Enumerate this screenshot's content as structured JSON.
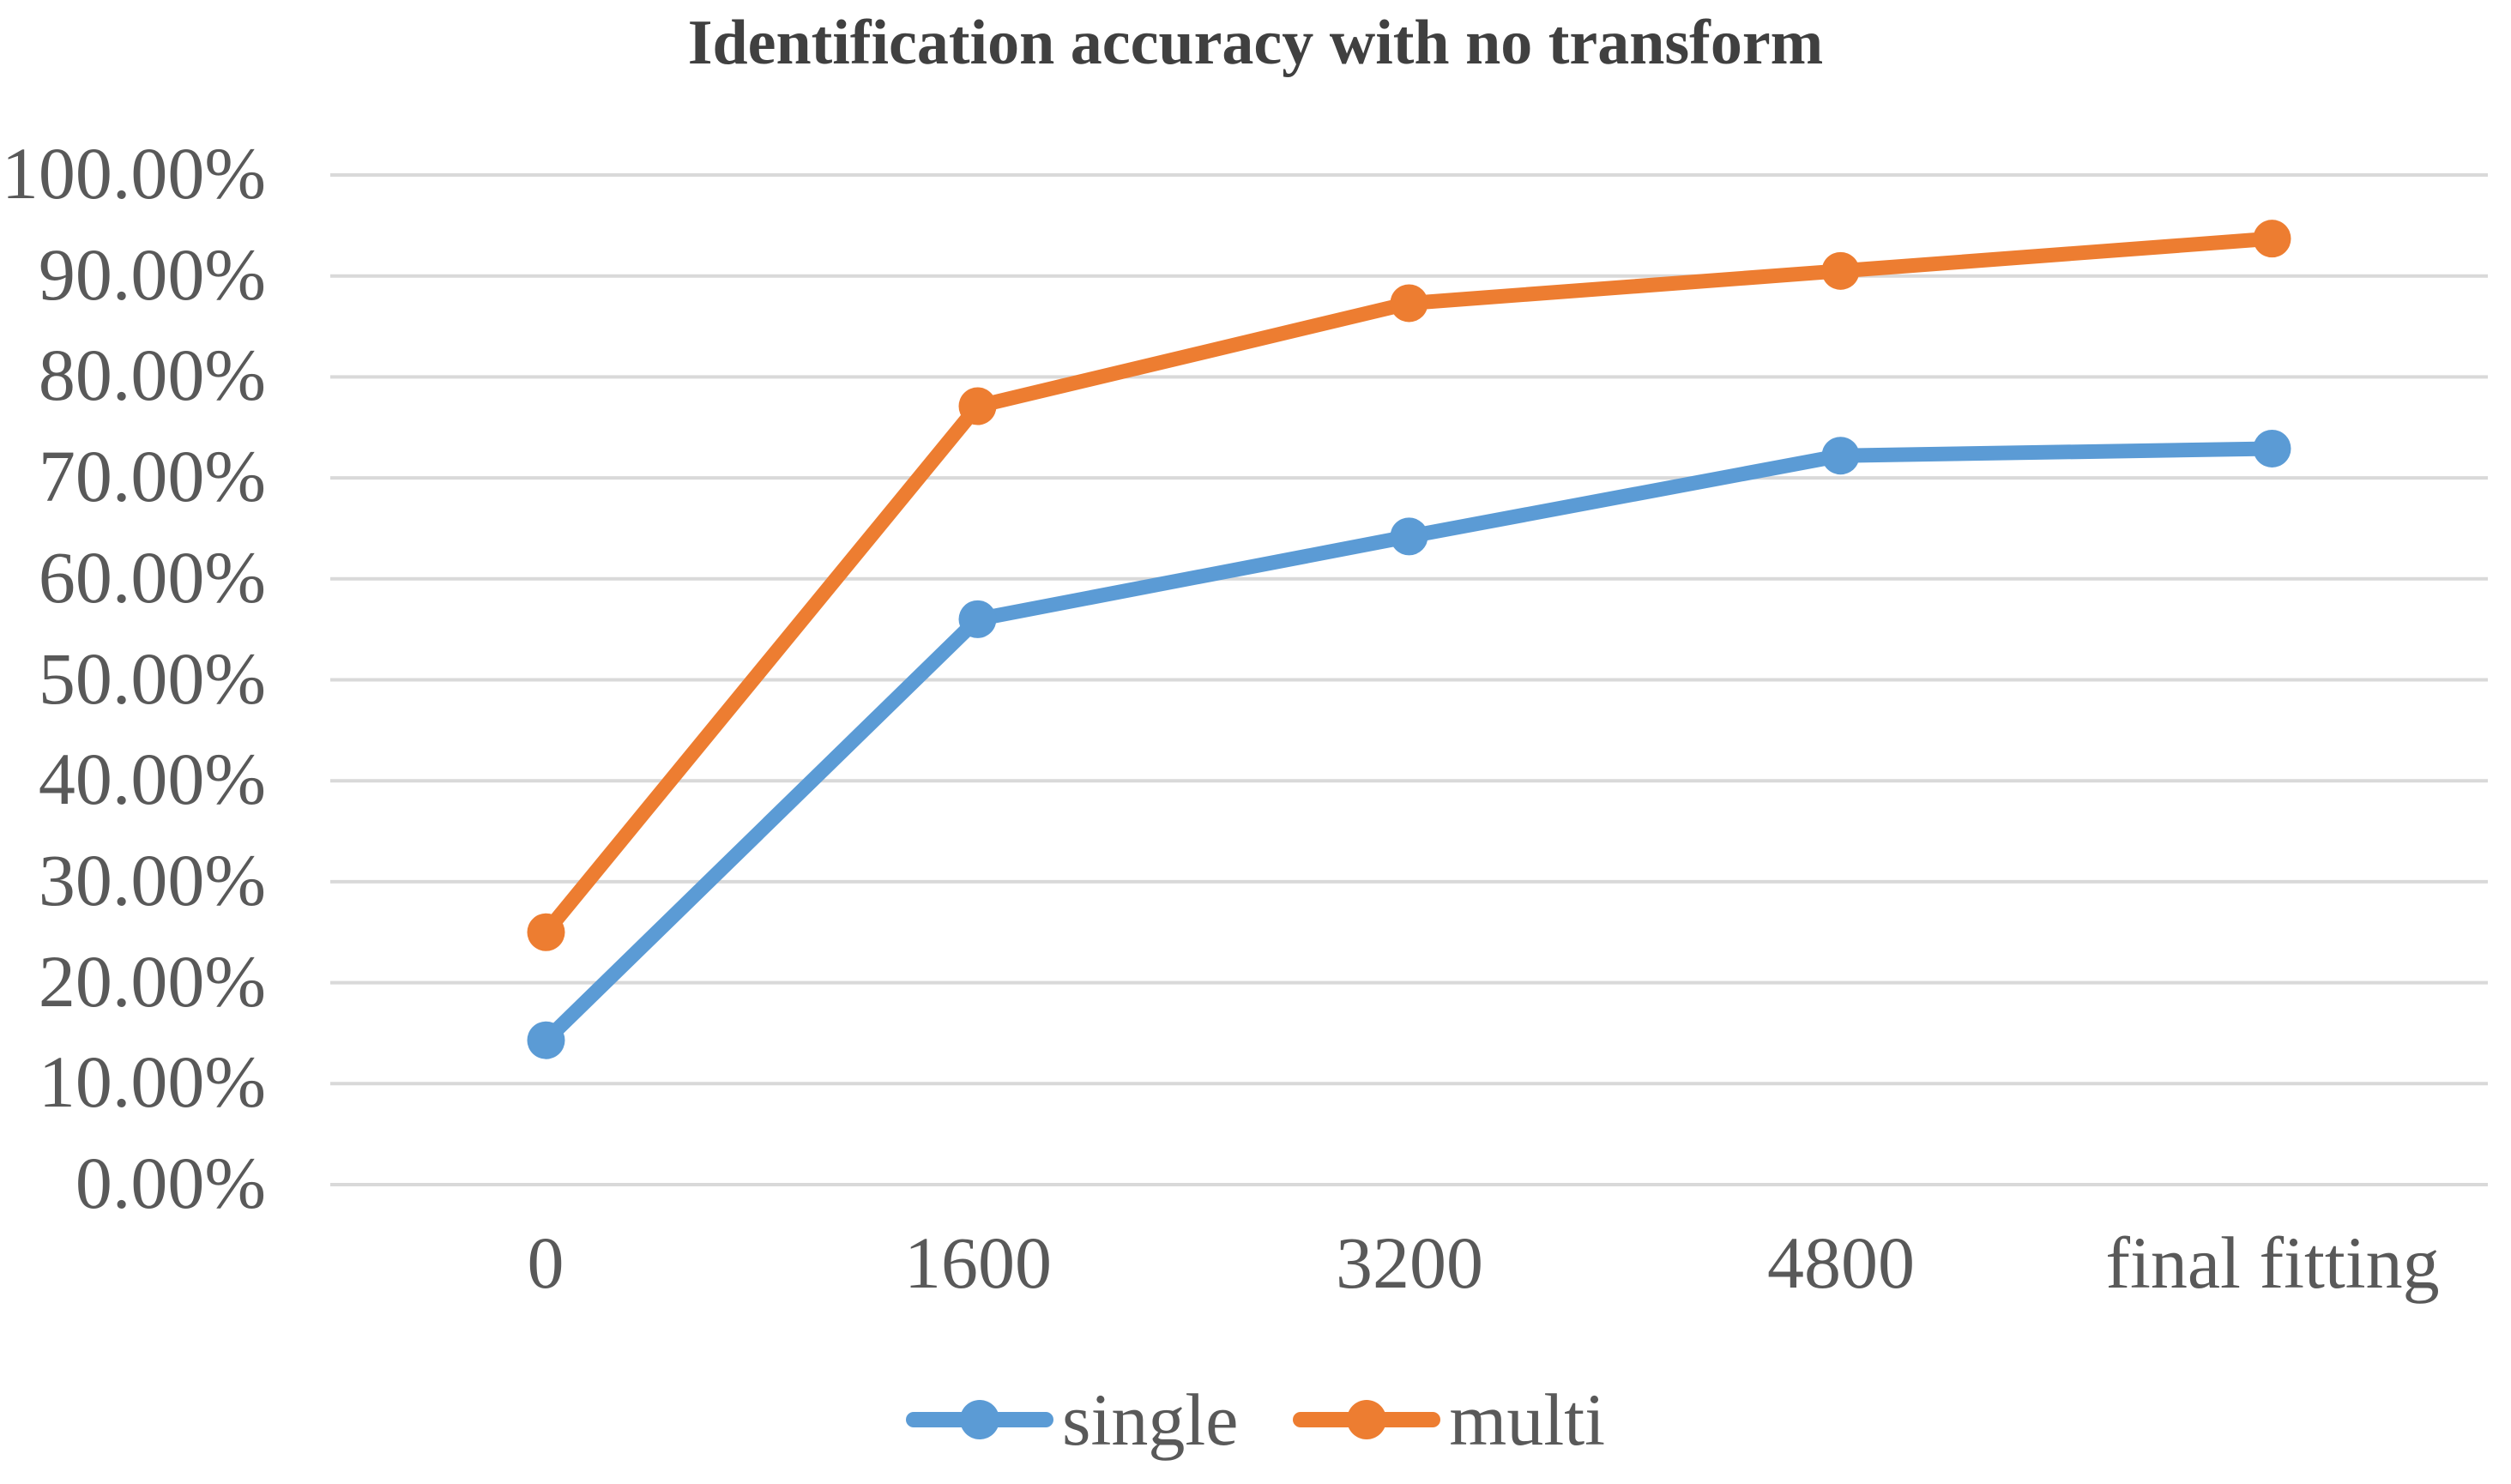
{
  "chart_data": {
    "type": "line",
    "title": "Identification accuracy with no transform",
    "categories": [
      "0",
      "1600",
      "3200",
      "4800",
      "final fitting"
    ],
    "series": [
      {
        "name": "single",
        "color": "#5B9BD5",
        "values": [
          14.3,
          56.0,
          64.2,
          72.2,
          72.9
        ]
      },
      {
        "name": "multi",
        "color": "#ED7D31",
        "values": [
          25.0,
          77.1,
          87.3,
          90.5,
          93.7
        ]
      }
    ],
    "ylim": [
      0,
      100
    ],
    "ytick_step": 10,
    "yticks": [
      "100.00%",
      "90.00%",
      "80.00%",
      "70.00%",
      "60.00%",
      "50.00%",
      "40.00%",
      "30.00%",
      "20.00%",
      "10.00%",
      "0.00%"
    ],
    "value_format": "percent",
    "grid": "horizontal",
    "gridline_color": "#D9D9D9",
    "text_color": "#595959",
    "title_color": "#404040",
    "legend_position": "bottom"
  }
}
